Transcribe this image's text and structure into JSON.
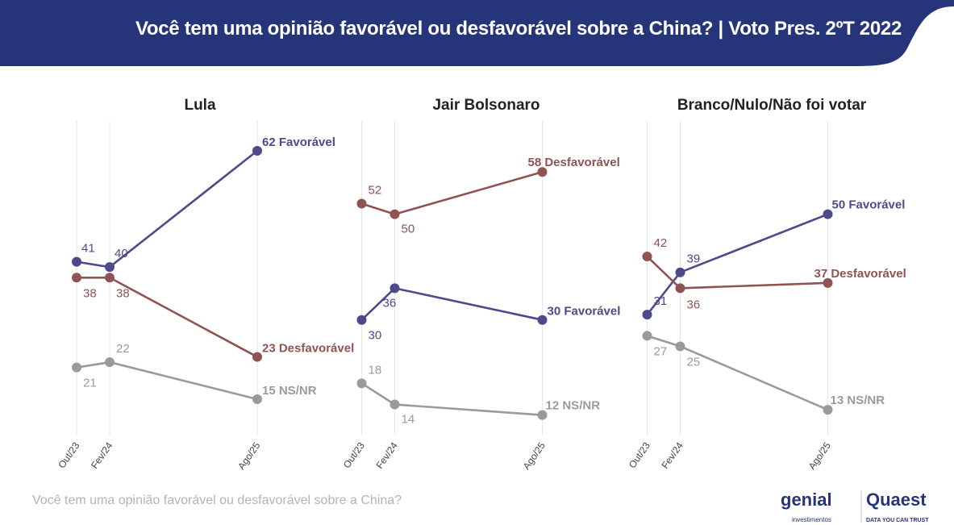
{
  "header": {
    "title": "Você tem uma opinião favorável ou desfavorável sobre a China? | Voto Pres. 2ºT 2022",
    "bg": "#26357a"
  },
  "footer": {
    "note": "Você tem uma opinião favorável ou desfavorável sobre a China?"
  },
  "logos": {
    "genial": "genial",
    "genial_sub": "investimentos",
    "quaest": "Quaest",
    "quaest_sub": "DATA YOU CAN TRUST",
    "watermark": "genial investimentos"
  },
  "colors": {
    "favoravel": "#4c4a8b",
    "desfavoravel": "#8f5353",
    "nsnr": "#9a9a9a",
    "grid": "#e6e6e6"
  },
  "chart_data": [
    {
      "type": "line",
      "title": "Lula",
      "categories": [
        "Out/23",
        "Fev/24",
        "Ago/25"
      ],
      "ylim": [
        0,
        70
      ],
      "grid": "vertical",
      "series": [
        {
          "name": "Favorável",
          "values": [
            41,
            40,
            62
          ]
        },
        {
          "name": "Desfavorável",
          "values": [
            38,
            38,
            23
          ]
        },
        {
          "name": "NS/NR",
          "values": [
            21,
            22,
            15
          ]
        }
      ]
    },
    {
      "type": "line",
      "title": "Jair Bolsonaro",
      "categories": [
        "Out/23",
        "Fev/24",
        "Ago/25"
      ],
      "ylim": [
        0,
        70
      ],
      "grid": "vertical",
      "series": [
        {
          "name": "Favorável",
          "values": [
            30,
            36,
            30
          ]
        },
        {
          "name": "Desfavorável",
          "values": [
            52,
            50,
            58
          ]
        },
        {
          "name": "NS/NR",
          "values": [
            18,
            14,
            12
          ]
        }
      ]
    },
    {
      "type": "line",
      "title": "Branco/Nulo/Não foi votar",
      "categories": [
        "Out/23",
        "Fev/24",
        "Ago/25"
      ],
      "ylim": [
        0,
        70
      ],
      "grid": "vertical",
      "series": [
        {
          "name": "Favorável",
          "values": [
            31,
            39,
            50
          ]
        },
        {
          "name": "Desfavorável",
          "values": [
            42,
            36,
            37
          ]
        },
        {
          "name": "NS/NR",
          "values": [
            27,
            25,
            13
          ]
        }
      ]
    }
  ]
}
